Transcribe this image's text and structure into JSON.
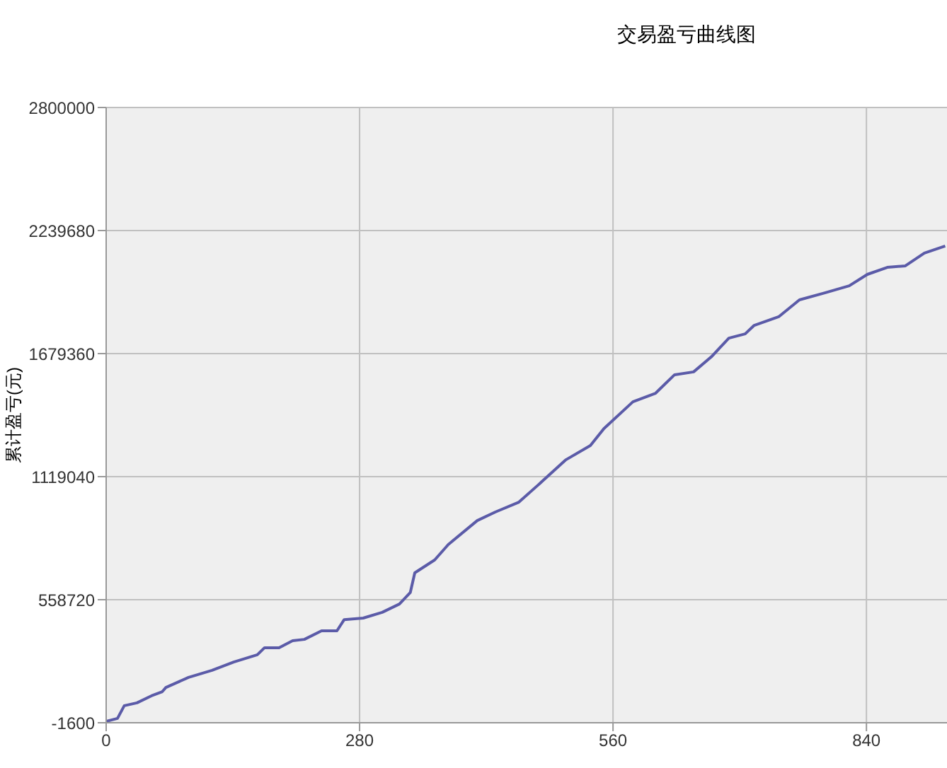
{
  "chart_data": {
    "type": "line",
    "title": "交易盈亏曲线图",
    "ylabel": "累计盈亏(元)",
    "x": [
      0,
      12.5,
      20,
      34,
      50,
      62,
      66,
      91,
      117,
      141,
      167,
      175,
      191,
      206,
      219,
      238,
      255,
      263,
      284,
      305,
      324,
      336,
      341,
      363,
      378,
      410,
      430,
      456,
      477,
      508,
      535,
      550,
      582,
      607,
      628,
      649,
      669,
      688,
      706,
      716,
      743,
      766,
      794,
      821,
      841,
      863,
      883,
      904,
      927
    ],
    "series": [
      {
        "color": "#5b5ba8",
        "values": [
          5000,
          18000,
          76000,
          89000,
          121000,
          140000,
          159000,
          205000,
          237000,
          275000,
          308000,
          340000,
          340000,
          372000,
          378000,
          417000,
          417000,
          468000,
          475000,
          501000,
          539000,
          591000,
          681000,
          740000,
          810000,
          919000,
          958000,
          1003000,
          1080000,
          1196000,
          1261000,
          1338000,
          1460000,
          1499000,
          1583000,
          1596000,
          1666000,
          1750000,
          1769000,
          1808000,
          1847000,
          1924000,
          1956000,
          1988000,
          2040000,
          2072000,
          2079000,
          2137000,
          2169000
        ]
      }
    ],
    "xlim": [
      0,
      929
    ],
    "xticks": [
      0,
      280,
      560,
      840
    ],
    "ylim": [
      -1600,
      2800000
    ],
    "yticks": [
      -1600,
      558720,
      1119040,
      1679360,
      2239680,
      2800000
    ],
    "grid": true,
    "legend": false,
    "marker": "none",
    "line_style": "solid"
  }
}
